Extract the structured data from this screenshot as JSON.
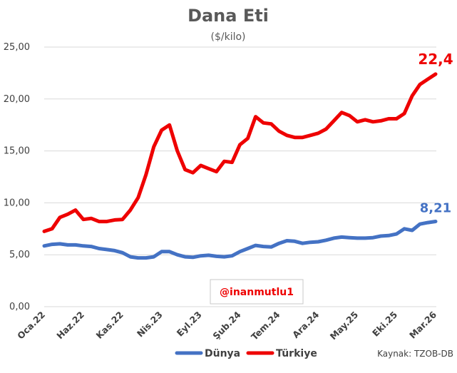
{
  "chart_data": {
    "type": "line",
    "title": "Dana Eti",
    "subtitle": "($/kilo)",
    "ylim": [
      0,
      25
    ],
    "yticks": [
      0,
      5,
      10,
      15,
      20,
      25
    ],
    "ytick_labels": [
      "0,00",
      "5,00",
      "10,00",
      "15,00",
      "20,00",
      "25,00"
    ],
    "grid": true,
    "x_tick_labels": [
      "Oca.22",
      "Haz.22",
      "Kas.22",
      "Nis.23",
      "Eyl.23",
      "Şub.24",
      "Tem.24",
      "Ara.24",
      "May.25",
      "Eki.25",
      "Mar.26"
    ],
    "x_tick_index": [
      0,
      5,
      10,
      15,
      20,
      25,
      30,
      35,
      40,
      45,
      50
    ],
    "series": [
      {
        "name": "Dünya",
        "color": "#4472c4",
        "values": [
          5.85,
          6.0,
          6.05,
          5.95,
          5.95,
          5.85,
          5.8,
          5.6,
          5.5,
          5.4,
          5.2,
          4.8,
          4.7,
          4.7,
          4.8,
          5.3,
          5.3,
          5.0,
          4.8,
          4.75,
          4.9,
          4.95,
          4.85,
          4.8,
          4.9,
          5.3,
          5.6,
          5.9,
          5.8,
          5.75,
          6.1,
          6.35,
          6.3,
          6.1,
          6.2,
          6.25,
          6.4,
          6.6,
          6.7,
          6.65,
          6.6,
          6.6,
          6.65,
          6.8,
          6.85,
          7.0,
          7.5,
          7.35,
          7.95,
          8.1,
          8.21
        ],
        "end_label": "8,21"
      },
      {
        "name": "Türkiye",
        "color": "#ee0000",
        "values": [
          7.25,
          7.5,
          8.6,
          8.9,
          9.3,
          8.4,
          8.5,
          8.2,
          8.2,
          8.35,
          8.4,
          9.3,
          10.5,
          12.7,
          15.4,
          17.0,
          17.5,
          15.0,
          13.2,
          12.9,
          13.6,
          13.3,
          13.0,
          14.0,
          13.9,
          15.6,
          16.2,
          18.3,
          17.7,
          17.6,
          16.9,
          16.5,
          16.3,
          16.3,
          16.5,
          16.7,
          17.1,
          17.9,
          18.7,
          18.4,
          17.8,
          18.0,
          17.8,
          17.9,
          18.1,
          18.1,
          18.6,
          20.3,
          21.4,
          21.9,
          22.4
        ],
        "end_label": "22,4"
      }
    ],
    "legend": [
      "Dünya",
      "Türkiye"
    ],
    "legend_position": "bottom",
    "watermark": "@inanmutlu1",
    "source_note": "Kaynak: TZOB-DB"
  }
}
